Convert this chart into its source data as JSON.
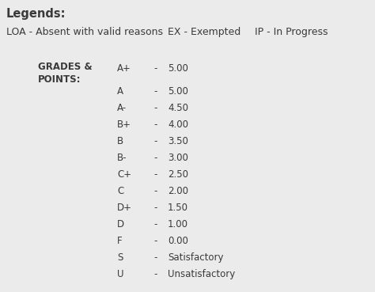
{
  "bg_color": "#ebebeb",
  "title": "Legends:",
  "loa_text": "LOA - Absent with valid reasons",
  "ex_text": "EX - Exempted",
  "ip_text": "IP - In Progress",
  "grades_label_line1": "GRADES &",
  "grades_label_line2": "POINTS:",
  "grades": [
    "A+",
    "A",
    "A-",
    "B+",
    "B",
    "B-",
    "C+",
    "C",
    "D+",
    "D",
    "F",
    "S",
    "U"
  ],
  "points": [
    "5.00",
    "5.00",
    "4.50",
    "4.00",
    "3.50",
    "3.00",
    "2.50",
    "2.00",
    "1.50",
    "1.00",
    "0.00",
    "Satisfactory",
    "Unsatisfactory"
  ],
  "title_fontsize": 10.5,
  "legend_fontsize": 9.0,
  "grades_label_fontsize": 8.5,
  "grades_fontsize": 8.5,
  "text_color": "#3a3a3a",
  "figw": 4.74,
  "figh": 3.69,
  "dpi": 100
}
